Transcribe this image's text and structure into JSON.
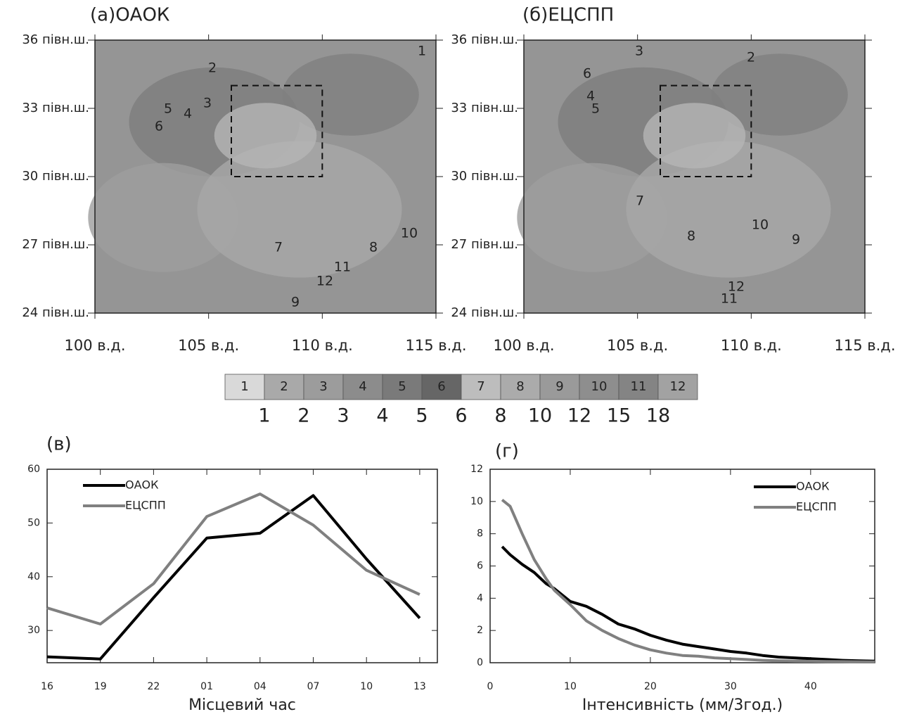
{
  "chart_data": [
    {
      "type": "map",
      "title": "(а)ОАОК",
      "xlim": [
        100,
        115
      ],
      "ylim": [
        24,
        36
      ],
      "xticks": [
        {
          "value": 100,
          "label": "100 в.д."
        },
        {
          "value": 105,
          "label": "105 в.д."
        },
        {
          "value": 110,
          "label": "110 в.д."
        },
        {
          "value": 115,
          "label": "115 в.д."
        }
      ],
      "yticks": [
        {
          "value": 24,
          "label": "24 півн.ш."
        },
        {
          "value": 27,
          "label": "27 півн.ш."
        },
        {
          "value": 30,
          "label": "30 півн.ш."
        },
        {
          "value": 33,
          "label": "33 півн.ш."
        },
        {
          "value": 36,
          "label": "36 півн.ш."
        }
      ],
      "regions": [
        1,
        2,
        3,
        4,
        5,
        6,
        7,
        8,
        9,
        10,
        11,
        12
      ]
    },
    {
      "type": "map",
      "title": "(б)ЕЦСПП",
      "xlim": [
        100,
        115
      ],
      "ylim": [
        24,
        36
      ],
      "xticks": [
        {
          "value": 100,
          "label": "100 в.д."
        },
        {
          "value": 105,
          "label": "105 в.д."
        },
        {
          "value": 110,
          "label": "110 в.д."
        },
        {
          "value": 115,
          "label": "115 в.д."
        }
      ],
      "yticks": [
        {
          "value": 24,
          "label": "24 півн.ш."
        },
        {
          "value": 27,
          "label": "27 півн.ш."
        },
        {
          "value": 30,
          "label": "30 півн.ш."
        },
        {
          "value": 33,
          "label": "33 півн.ш."
        },
        {
          "value": 36,
          "label": "36 півн.ш."
        }
      ],
      "regions": [
        2,
        3,
        4,
        5,
        6,
        7,
        8,
        9,
        10,
        11,
        12
      ]
    },
    {
      "type": "colorbar",
      "classes": [
        1,
        2,
        3,
        4,
        5,
        6,
        7,
        8,
        9,
        10,
        11,
        12
      ],
      "colors": [
        "#d9d9d9",
        "#a9a9a9",
        "#9c9c9c",
        "#8c8c8c",
        "#7a7a7a",
        "#666666",
        "#bdbdbd",
        "#ababab",
        "#9a9a9a",
        "#8e8e8e",
        "#848484",
        "#a2a2a2"
      ],
      "ticks": [
        1,
        2,
        3,
        4,
        5,
        6,
        8,
        10,
        12,
        15,
        18
      ]
    },
    {
      "type": "line",
      "title": "(в)",
      "x_label": "Місцевий час",
      "categories": [
        "16",
        "19",
        "22",
        "01",
        "04",
        "07",
        "10",
        "13"
      ],
      "ylim": [
        24,
        60
      ],
      "yticks": [
        30,
        40,
        50,
        60
      ],
      "series": [
        {
          "name": "ОАОК",
          "color": "#000000",
          "values": [
            25.1,
            24.7,
            36.1,
            47.2,
            48.1,
            55.1,
            43.3,
            32.3
          ]
        },
        {
          "name": "ЕЦСПП",
          "color": "#808080",
          "values": [
            34.2,
            31.2,
            38.7,
            51.2,
            55.4,
            49.6,
            41.2,
            36.7
          ]
        }
      ]
    },
    {
      "type": "line",
      "title": "(г)",
      "x_label": "Інтенсивність (мм/3год.)",
      "x": [
        1.5,
        2.5,
        4,
        5.5,
        7,
        8,
        10,
        12,
        14,
        16,
        18,
        20,
        22,
        24,
        26,
        28,
        30,
        32,
        34,
        36,
        38,
        40,
        42,
        44,
        46,
        48
      ],
      "xlim": [
        0,
        48
      ],
      "xticks": [
        0,
        10,
        20,
        30,
        40
      ],
      "ylim": [
        0,
        12
      ],
      "yticks": [
        0,
        2,
        4,
        6,
        8,
        10,
        12
      ],
      "series": [
        {
          "name": "ОАОК",
          "color": "#000000",
          "values": [
            7.2,
            6.7,
            6.1,
            5.6,
            4.9,
            4.6,
            3.8,
            3.5,
            3.0,
            2.4,
            2.1,
            1.7,
            1.4,
            1.15,
            1.0,
            0.85,
            0.7,
            0.6,
            0.45,
            0.35,
            0.3,
            0.25,
            0.2,
            0.15,
            0.12,
            0.1
          ]
        },
        {
          "name": "ЕЦСПП",
          "color": "#808080",
          "values": [
            10.1,
            9.7,
            8.0,
            6.4,
            5.2,
            4.5,
            3.6,
            2.6,
            2.0,
            1.5,
            1.1,
            0.8,
            0.6,
            0.45,
            0.4,
            0.3,
            0.25,
            0.2,
            0.15,
            0.12,
            0.1,
            0.09,
            0.08,
            0.07,
            0.06,
            0.05
          ]
        }
      ]
    }
  ]
}
